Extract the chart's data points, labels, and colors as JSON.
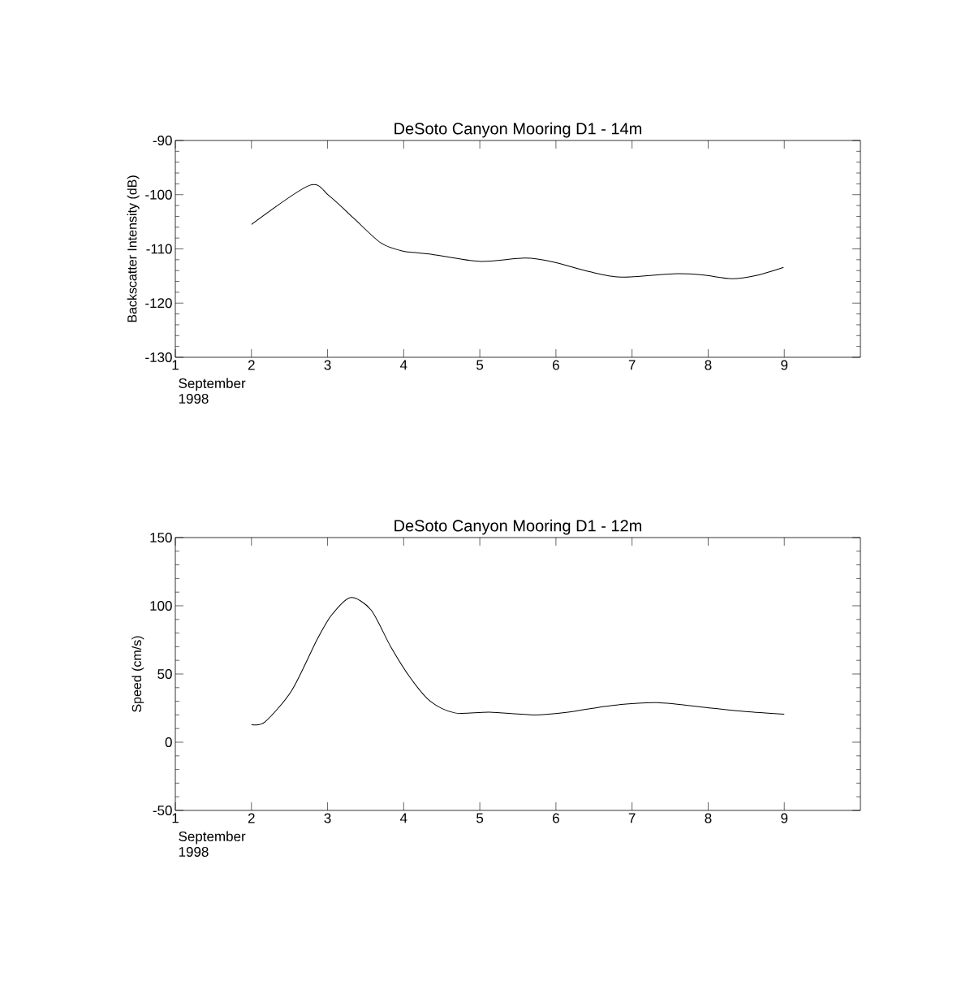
{
  "chart_data": [
    {
      "type": "line",
      "title": "DeSoto Canyon Mooring D1 - 14m",
      "xlabel": "September 1998",
      "ylabel": "Backscatter Intensity (dB)",
      "color": "#000000",
      "x": [
        2.0,
        2.76,
        3.02,
        3.34,
        3.7,
        3.99,
        4.37,
        4.99,
        5.6,
        5.99,
        6.44,
        6.86,
        7.54,
        7.92,
        8.31,
        8.63,
        8.99
      ],
      "values": [
        -105.5,
        -98.3,
        -100.2,
        -104.3,
        -108.9,
        -110.4,
        -111.0,
        -112.3,
        -111.7,
        -112.5,
        -114.2,
        -115.2,
        -114.6,
        -114.8,
        -115.5,
        -114.9,
        -113.4
      ],
      "xlim": [
        1,
        10
      ],
      "ylim": [
        -130,
        -90
      ],
      "xticks": [
        1,
        2,
        3,
        4,
        5,
        6,
        7,
        8,
        9
      ],
      "yticks": [
        -130,
        -120,
        -110,
        -100,
        -90
      ]
    },
    {
      "type": "line",
      "title": "DeSoto Canyon Mooring D1 - 12m",
      "xlabel": "September 1998",
      "ylabel": "Speed (cm/s)",
      "color": "#000000",
      "x": [
        2.0,
        2.18,
        2.53,
        2.86,
        3.05,
        3.3,
        3.57,
        3.83,
        4.09,
        4.35,
        4.67,
        5.13,
        5.71,
        6.16,
        6.74,
        7.33,
        8.04,
        8.49,
        9.0
      ],
      "values": [
        13,
        15,
        38,
        75,
        93,
        106,
        97,
        70,
        47,
        30,
        21.5,
        22,
        20,
        22,
        27,
        29,
        25,
        22.5,
        20.5
      ],
      "xlim": [
        1,
        10
      ],
      "ylim": [
        -50,
        150
      ],
      "xticks": [
        1,
        2,
        3,
        4,
        5,
        6,
        7,
        8,
        9
      ],
      "yticks": [
        -50,
        0,
        50,
        100,
        150
      ]
    }
  ]
}
